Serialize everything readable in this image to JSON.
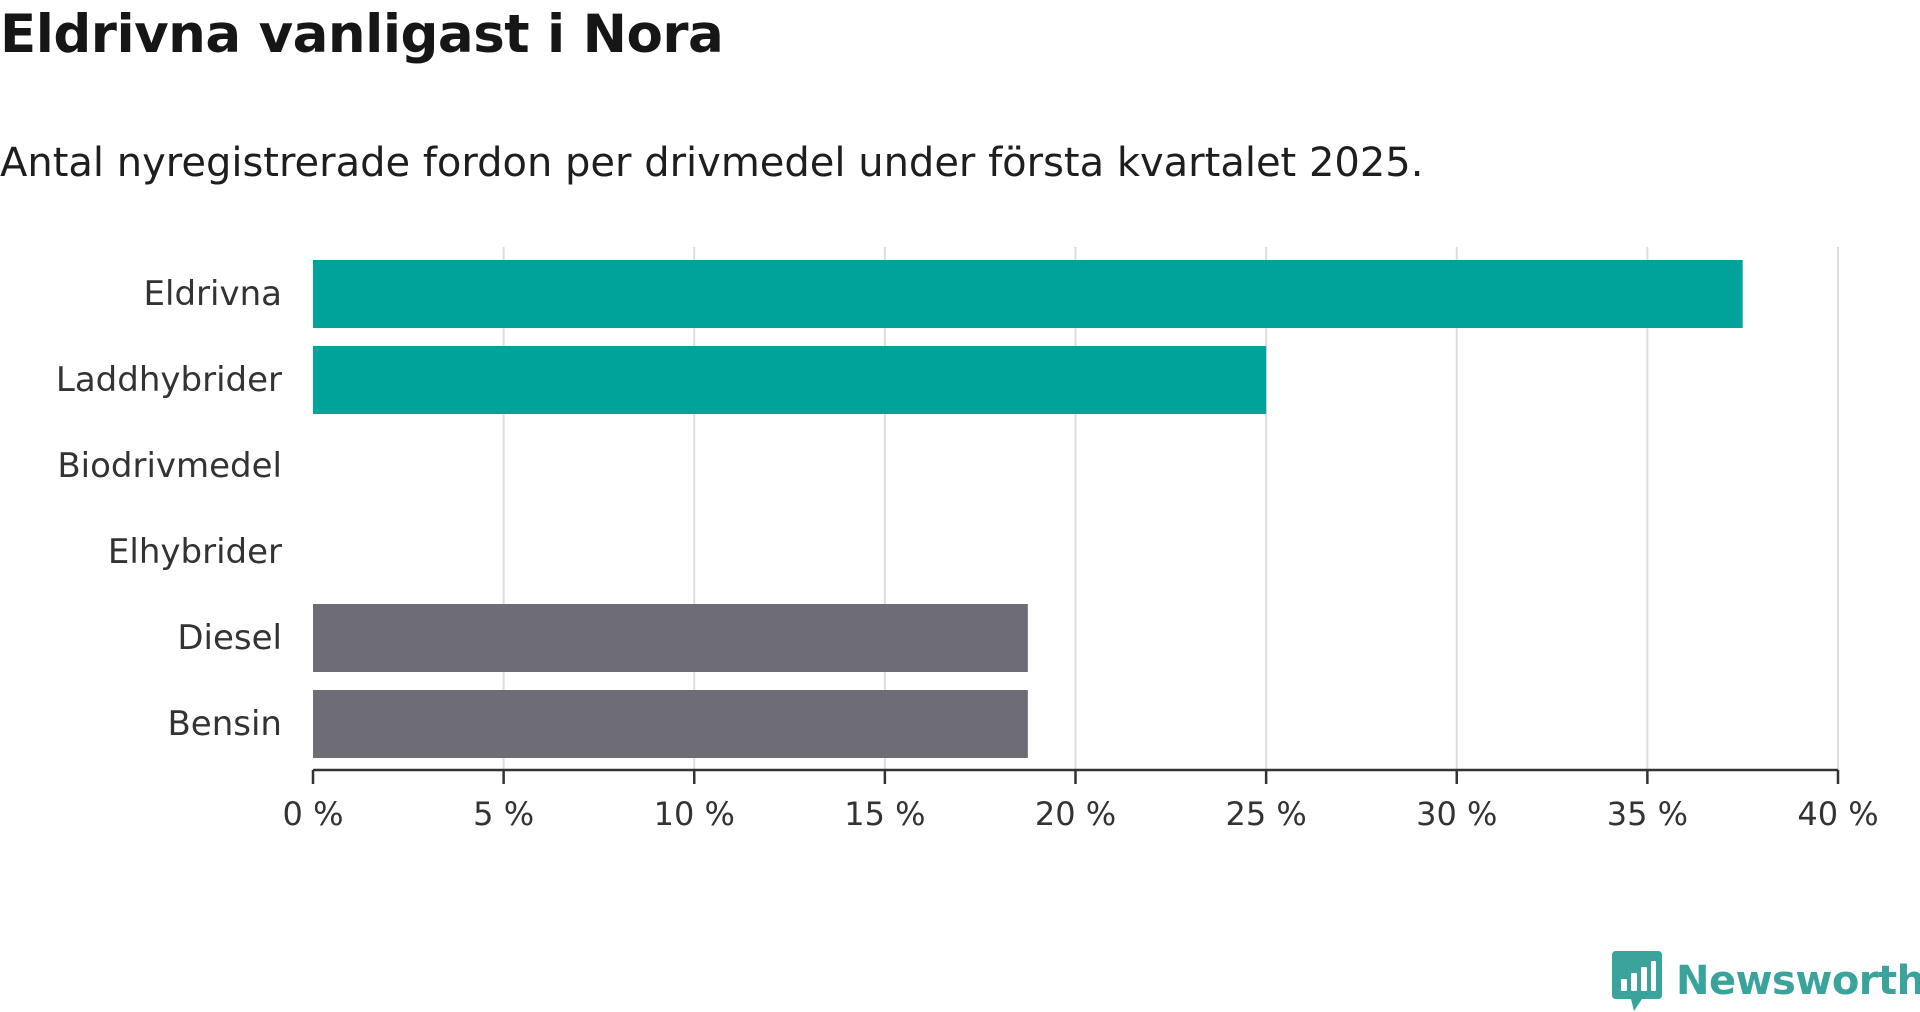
{
  "chart_data": {
    "type": "bar",
    "orientation": "horizontal",
    "title": "Eldrivna vanligast i Nora",
    "subtitle": "Antal nyregistrerade fordon per drivmedel under första kvartalet 2025.",
    "categories": [
      "Eldrivna",
      "Laddhybrider",
      "Biodrivmedel",
      "Elhybrider",
      "Diesel",
      "Bensin"
    ],
    "values": [
      37.5,
      25,
      0,
      0,
      18.75,
      18.75
    ],
    "bar_colors": [
      "#00a39a",
      "#00a39a",
      "#00a39a",
      "#00a39a",
      "#6e6d75",
      "#6e6d75"
    ],
    "xlim": [
      0,
      40
    ],
    "xticks": [
      0,
      5,
      10,
      15,
      20,
      25,
      30,
      35,
      40
    ],
    "xtick_labels": [
      "0 %",
      "5 %",
      "10 %",
      "15 %",
      "20 %",
      "25 %",
      "30 %",
      "35 %",
      "40 %"
    ],
    "grid": true,
    "grid_color": "#dddddd",
    "axis_color": "#333333"
  },
  "brand": {
    "name": "Newsworthy",
    "color": "#3aa39b",
    "icon": "newsworthy-logo-icon"
  }
}
